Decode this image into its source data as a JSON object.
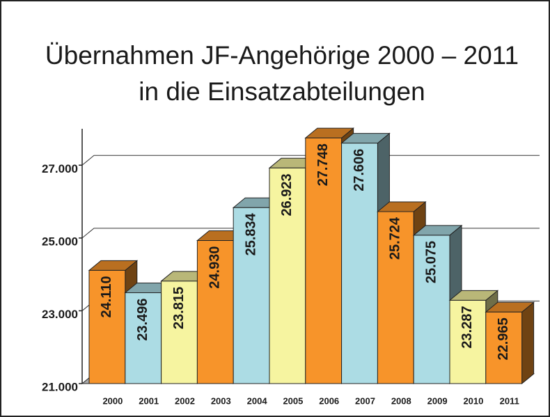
{
  "chart_data": {
    "type": "bar3d",
    "title": "Übernahmen JF-Angehörige 2000 – 2011",
    "subtitle": "in die Einsatzabteilungen",
    "categories": [
      "2000",
      "2001",
      "2002",
      "2003",
      "2004",
      "2005",
      "2006",
      "2007",
      "2008",
      "2009",
      "2010",
      "2011"
    ],
    "values": [
      24110,
      23496,
      23815,
      24930,
      25834,
      26923,
      27748,
      27606,
      25724,
      25075,
      23287,
      22965
    ],
    "value_labels": [
      "24.110",
      "23.496",
      "23.815",
      "24.930",
      "25.834",
      "26.923",
      "27.748",
      "27.606",
      "25.724",
      "25.075",
      "23.287",
      "22.965"
    ],
    "colors": [
      "#f7942a",
      "#acdce4",
      "#f6f4a0",
      "#f7942a",
      "#acdce4",
      "#f6f4a0",
      "#f7942a",
      "#acdce4",
      "#f7942a",
      "#acdce4",
      "#f6f4a0",
      "#f7942a"
    ],
    "ylim": [
      21000,
      28000
    ],
    "yticks": [
      {
        "value": 21000,
        "label": "21.000"
      },
      {
        "value": 23000,
        "label": "23.000"
      },
      {
        "value": 25000,
        "label": "25.000"
      },
      {
        "value": 27000,
        "label": "27.000"
      }
    ],
    "grid": true
  }
}
